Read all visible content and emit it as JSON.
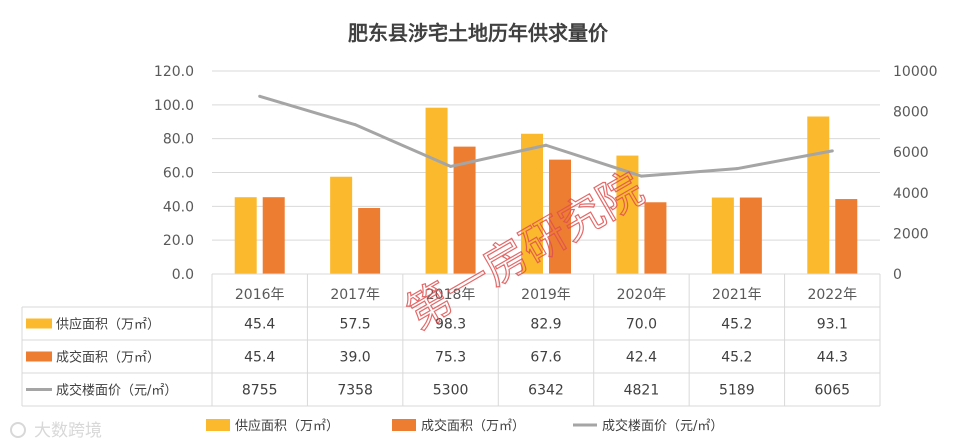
{
  "colors": {
    "supply": "#FBB92D",
    "deal": "#ED7D31",
    "price": "#A5A5A5",
    "grid": "#D9D9D9",
    "watermark": "#E05050"
  },
  "watermark": {
    "text": "第一房研究院"
  },
  "logo": {
    "text": "大数跨境"
  },
  "chart_data": {
    "type": "bar",
    "title": "肥东县涉宅土地历年供求量价",
    "categories": [
      "2016年",
      "2017年",
      "2018年",
      "2019年",
      "2020年",
      "2021年",
      "2022年"
    ],
    "y_left": {
      "ticks": [
        "0.0",
        "20.0",
        "40.0",
        "60.0",
        "80.0",
        "100.0",
        "120.0"
      ],
      "ylim": [
        0,
        120
      ]
    },
    "y_right": {
      "ticks": [
        "0",
        "2000",
        "4000",
        "6000",
        "8000",
        "10000"
      ],
      "ylim": [
        0,
        10000
      ]
    },
    "series": [
      {
        "name": "供应面积（万㎡）",
        "type": "bar",
        "axis": "left",
        "values": [
          45.4,
          57.5,
          98.3,
          82.9,
          70.0,
          45.2,
          93.1
        ],
        "labels": [
          "45.4",
          "57.5",
          "98.3",
          "82.9",
          "70.0",
          "45.2",
          "93.1"
        ]
      },
      {
        "name": "成交面积（万㎡）",
        "type": "bar",
        "axis": "left",
        "values": [
          45.4,
          39.0,
          75.3,
          67.6,
          42.4,
          45.2,
          44.3
        ],
        "labels": [
          "45.4",
          "39.0",
          "75.3",
          "67.6",
          "42.4",
          "45.2",
          "44.3"
        ]
      },
      {
        "name": "成交楼面价（元/㎡）",
        "type": "line",
        "axis": "right",
        "values": [
          8755,
          7358,
          5300,
          6342,
          4821,
          5189,
          6065
        ],
        "labels": [
          "8755",
          "7358",
          "5300",
          "6342",
          "4821",
          "5189",
          "6065"
        ]
      }
    ]
  }
}
